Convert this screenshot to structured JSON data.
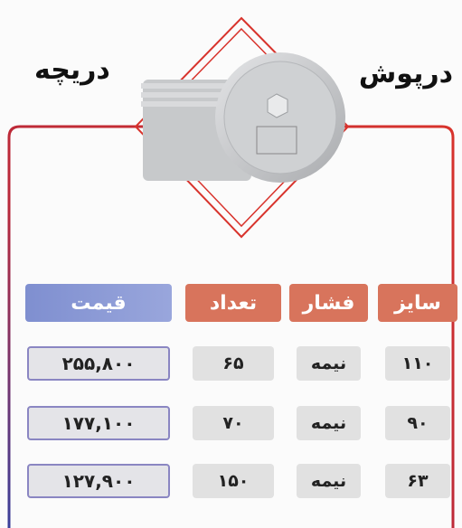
{
  "header": {
    "title_left": "دریچه",
    "title_right": "درپوش"
  },
  "table": {
    "headers": [
      "سایز",
      "فشار",
      "تعداد",
      "قیمت"
    ],
    "rows": [
      [
        "۱۱۰",
        "نیمه",
        "۶۵",
        "۲۵۵,۸۰۰"
      ],
      [
        "۹۰",
        "نیمه",
        "۷۰",
        "۱۷۷,۱۰۰"
      ],
      [
        "۶۳",
        "نیمه",
        "۱۵۰",
        "۱۲۷,۹۰۰"
      ]
    ]
  }
}
